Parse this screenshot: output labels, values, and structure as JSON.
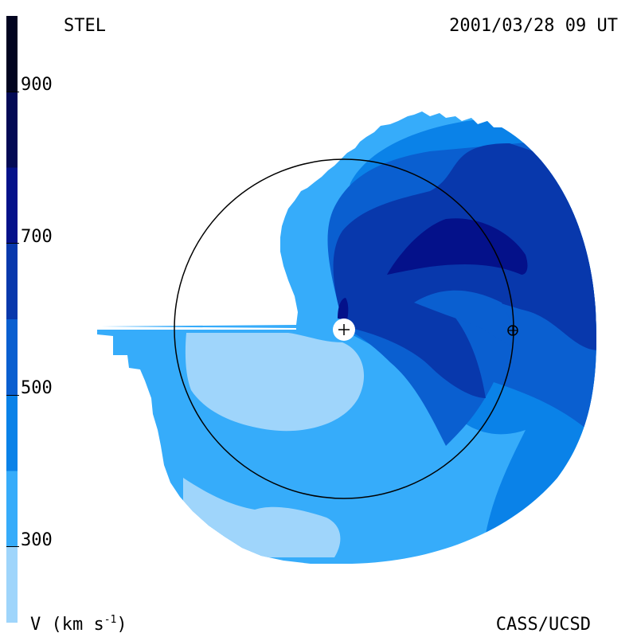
{
  "header": {
    "instrument": "STEL",
    "datetime": "2001/03/28 09 UT"
  },
  "footer": {
    "units_main": "V (km s",
    "units_sup": "-1",
    "units_close": ")",
    "credit": "CASS/UCSD"
  },
  "colorbar": {
    "ticks": [
      {
        "label": "900",
        "value": 900
      },
      {
        "label": "700",
        "value": 700
      },
      {
        "label": "500",
        "value": 500
      },
      {
        "label": "300",
        "value": 300
      }
    ],
    "range": [
      200,
      1000
    ],
    "levels": [
      {
        "from": 200,
        "to": 300,
        "color": "#9fd5fb"
      },
      {
        "from": 300,
        "to": 400,
        "color": "#36acfa"
      },
      {
        "from": 400,
        "to": 500,
        "color": "#0a82e8"
      },
      {
        "from": 500,
        "to": 600,
        "color": "#0a5fd0"
      },
      {
        "from": 600,
        "to": 700,
        "color": "#0838ac"
      },
      {
        "from": 700,
        "to": 800,
        "color": "#04118a"
      },
      {
        "from": 800,
        "to": 900,
        "color": "#030a55"
      },
      {
        "from": 900,
        "to": 1000,
        "color": "#020420"
      }
    ]
  },
  "markers": {
    "sun": "plus-in-circle",
    "earth": "circled-plus"
  }
}
